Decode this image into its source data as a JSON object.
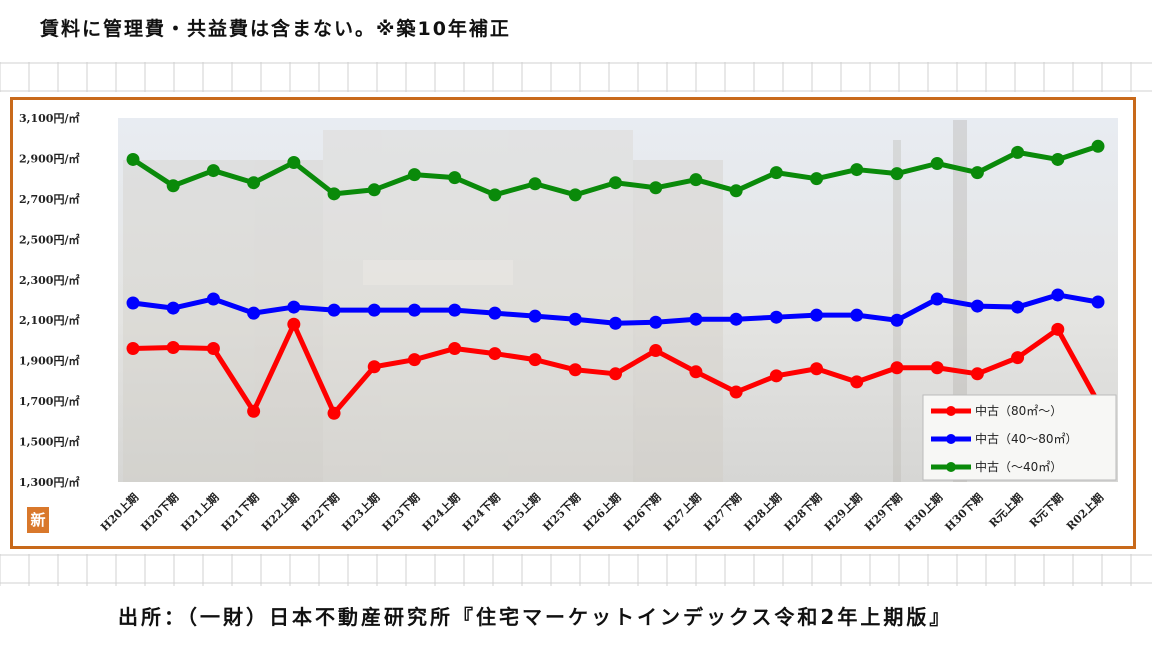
{
  "header": {
    "note": "賃料に管理費・共益費は含まない。※築10年補正"
  },
  "footer": {
    "source": "出所：（一財）日本不動産研究所『住宅マーケットインデックス令和2年上期版』"
  },
  "badge": {
    "label": "新"
  },
  "colors": {
    "frame": "#c8691a",
    "series": [
      "#ff0000",
      "#0000ff",
      "#0a8a0a"
    ]
  },
  "chart_data": {
    "type": "line",
    "title": "",
    "xlabel": "",
    "ylabel": "",
    "ylim": [
      1300,
      3100
    ],
    "y_ticks": [
      "3,100円/㎡",
      "2,900円/㎡",
      "2,700円/㎡",
      "2,500円/㎡",
      "2,300円/㎡",
      "2,100円/㎡",
      "1,900円/㎡",
      "1,700円/㎡",
      "1,500円/㎡",
      "1,300円/㎡"
    ],
    "y_tick_values": [
      3100,
      2900,
      2700,
      2500,
      2300,
      2100,
      1900,
      1700,
      1500,
      1300
    ],
    "categories": [
      "H20上期",
      "H20下期",
      "H21上期",
      "H21下期",
      "H22上期",
      "H22下期",
      "H23上期",
      "H23下期",
      "H24上期",
      "H24下期",
      "H25上期",
      "H25下期",
      "H26上期",
      "H26下期",
      "H27上期",
      "H27下期",
      "H28上期",
      "H28下期",
      "H29上期",
      "H29下期",
      "H30上期",
      "H30下期",
      "R元上期",
      "R元下期",
      "R02上期"
    ],
    "legend_position": "bottom-right",
    "grid": false,
    "series": [
      {
        "name": "中古（80㎡～）",
        "color": "#ff0000",
        "values": [
          1960,
          1965,
          1960,
          1650,
          2080,
          1640,
          1870,
          1905,
          1960,
          1935,
          1905,
          1855,
          1835,
          1950,
          1845,
          1745,
          1825,
          1860,
          1795,
          1865,
          1865,
          1835,
          1915,
          2055,
          1695
        ]
      },
      {
        "name": "中古（40～80㎡）",
        "color": "#0000ff",
        "values": [
          2185,
          2160,
          2205,
          2135,
          2165,
          2150,
          2150,
          2150,
          2150,
          2135,
          2120,
          2105,
          2085,
          2090,
          2105,
          2105,
          2115,
          2125,
          2125,
          2100,
          2205,
          2170,
          2165,
          2225,
          2190
        ]
      },
      {
        "name": "中古（～40㎡）",
        "color": "#0a8a0a",
        "values": [
          2895,
          2765,
          2840,
          2780,
          2880,
          2725,
          2745,
          2820,
          2805,
          2720,
          2775,
          2720,
          2780,
          2755,
          2795,
          2740,
          2830,
          2800,
          2845,
          2825,
          2875,
          2830,
          2930,
          2895,
          2960
        ]
      }
    ]
  }
}
